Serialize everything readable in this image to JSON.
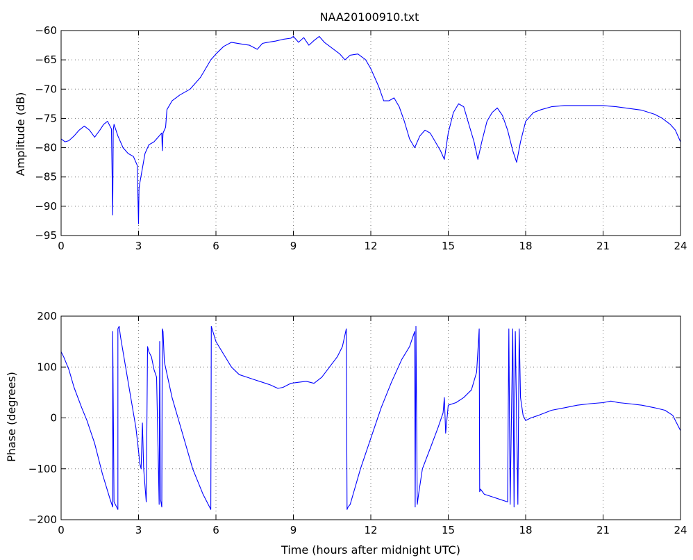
{
  "chart_data": [
    {
      "type": "line",
      "title": "NAA20100910.txt",
      "xlabel": "",
      "ylabel": "Amplitude (dB)",
      "xlim": [
        0,
        24
      ],
      "ylim": [
        -95,
        -60
      ],
      "xticks": [
        0,
        3,
        6,
        9,
        12,
        15,
        18,
        21,
        24
      ],
      "yticks": [
        -95,
        -90,
        -85,
        -80,
        -75,
        -70,
        -65,
        -60
      ],
      "grid": true,
      "series": [
        {
          "color": "#0000ff",
          "x": [
            0,
            0.15,
            0.3,
            0.5,
            0.7,
            0.9,
            1.1,
            1.3,
            1.5,
            1.65,
            1.8,
            1.95,
            2.0,
            2.02,
            2.05,
            2.2,
            2.4,
            2.6,
            2.8,
            2.95,
            3.0,
            3.02,
            3.05,
            3.15,
            3.25,
            3.4,
            3.6,
            3.8,
            3.9,
            3.92,
            3.95,
            4.05,
            4.1,
            4.3,
            4.6,
            5.0,
            5.4,
            5.8,
            6.0,
            6.3,
            6.6,
            7.0,
            7.3,
            7.6,
            7.8,
            8.0,
            8.3,
            8.6,
            8.9,
            9.0,
            9.2,
            9.4,
            9.6,
            9.8,
            10.0,
            10.2,
            10.5,
            10.8,
            11.0,
            11.2,
            11.5,
            11.8,
            12.0,
            12.3,
            12.5,
            12.7,
            12.9,
            13.1,
            13.3,
            13.5,
            13.7,
            13.9,
            14.1,
            14.3,
            14.5,
            14.7,
            14.85,
            15.0,
            15.2,
            15.4,
            15.6,
            15.8,
            16.0,
            16.15,
            16.3,
            16.5,
            16.7,
            16.9,
            17.1,
            17.3,
            17.5,
            17.65,
            17.8,
            18.0,
            18.3,
            18.6,
            19.0,
            19.5,
            20.0,
            20.5,
            21.0,
            21.5,
            22.0,
            22.5,
            23.0,
            23.3,
            23.6,
            23.8,
            24.0
          ],
          "y": [
            -78.5,
            -79.0,
            -78.8,
            -78.0,
            -77.0,
            -76.3,
            -77.0,
            -78.2,
            -77.0,
            -76.0,
            -75.5,
            -76.8,
            -91.5,
            -77.0,
            -76.0,
            -78.0,
            -80.0,
            -81.0,
            -81.5,
            -83.0,
            -93.0,
            -87.0,
            -86.0,
            -83.5,
            -81.0,
            -79.5,
            -79.0,
            -78.0,
            -77.5,
            -80.5,
            -77.5,
            -76.5,
            -73.5,
            -72.0,
            -71.0,
            -70.0,
            -68.0,
            -65.0,
            -64.0,
            -62.7,
            -62.0,
            -62.3,
            -62.5,
            -63.2,
            -62.2,
            -62.0,
            -61.8,
            -61.5,
            -61.3,
            -61.0,
            -62.0,
            -61.2,
            -62.5,
            -61.7,
            -61.0,
            -62.0,
            -63.0,
            -64.0,
            -65.0,
            -64.2,
            -64.0,
            -65.0,
            -66.5,
            -69.5,
            -72.0,
            -72.0,
            -71.5,
            -73.0,
            -75.5,
            -78.5,
            -80.0,
            -78.0,
            -77.0,
            -77.5,
            -79.0,
            -80.5,
            -82.0,
            -77.5,
            -74.0,
            -72.5,
            -73.0,
            -76.0,
            -79.0,
            -82.0,
            -79.0,
            -75.5,
            -74.0,
            -73.2,
            -74.5,
            -77.0,
            -80.5,
            -82.5,
            -79.0,
            -75.5,
            -74.0,
            -73.5,
            -73.0,
            -72.8,
            -72.8,
            -72.8,
            -72.8,
            -73.0,
            -73.3,
            -73.6,
            -74.3,
            -75.0,
            -76.0,
            -77.0,
            -79.0
          ]
        }
      ]
    },
    {
      "type": "line",
      "title": "",
      "xlabel": "Time (hours after midnight UTC)",
      "ylabel": "Phase (degrees)",
      "xlim": [
        0,
        24
      ],
      "ylim": [
        -200,
        200
      ],
      "xticks": [
        0,
        3,
        6,
        9,
        12,
        15,
        18,
        21,
        24
      ],
      "yticks": [
        -200,
        -100,
        0,
        100,
        200
      ],
      "grid": true,
      "series": [
        {
          "color": "#0000ff",
          "x": [
            0,
            0.1,
            0.3,
            0.5,
            0.8,
            1.0,
            1.3,
            1.6,
            1.9,
            2.0,
            2.0,
            2.05,
            2.2,
            2.2,
            2.25,
            2.3,
            2.6,
            2.9,
            3.0,
            3.05,
            3.1,
            3.15,
            3.2,
            3.3,
            3.35,
            3.4,
            3.5,
            3.6,
            3.7,
            3.8,
            3.82,
            3.85,
            3.9,
            3.92,
            3.95,
            4.0,
            4.3,
            4.7,
            5.1,
            5.5,
            5.8,
            5.82,
            5.85,
            6.0,
            6.3,
            6.6,
            6.9,
            7.2,
            7.5,
            7.8,
            8.1,
            8.4,
            8.6,
            8.9,
            9.2,
            9.5,
            9.8,
            10.1,
            10.4,
            10.7,
            10.9,
            11.05,
            11.08,
            11.12,
            11.2,
            11.6,
            12.0,
            12.4,
            12.8,
            13.2,
            13.5,
            13.7,
            13.72,
            13.75,
            13.8,
            13.85,
            14.0,
            14.3,
            14.6,
            14.8,
            14.85,
            14.9,
            15.0,
            15.3,
            15.6,
            15.9,
            16.1,
            16.2,
            16.22,
            16.25,
            16.4,
            16.7,
            17.0,
            17.3,
            17.35,
            17.4,
            17.5,
            17.55,
            17.6,
            17.7,
            17.75,
            17.8,
            17.9,
            18.0,
            18.2,
            18.5,
            19.0,
            19.5,
            20.0,
            20.5,
            21.0,
            21.3,
            21.6,
            22.0,
            22.5,
            23.0,
            23.4,
            23.7,
            23.85,
            24.0
          ],
          "y": [
            130,
            120,
            95,
            60,
            20,
            -5,
            -50,
            -110,
            -160,
            -175,
            170,
            -165,
            -180,
            175,
            180,
            160,
            70,
            -20,
            -65,
            -90,
            -100,
            -10,
            -100,
            -165,
            140,
            130,
            120,
            95,
            80,
            -170,
            150,
            -160,
            -175,
            175,
            170,
            110,
            40,
            -30,
            -100,
            -150,
            -180,
            180,
            175,
            150,
            125,
            100,
            85,
            80,
            75,
            70,
            65,
            58,
            60,
            68,
            70,
            72,
            68,
            80,
            100,
            120,
            140,
            175,
            -180,
            -175,
            -170,
            -100,
            -40,
            20,
            70,
            115,
            140,
            170,
            -175,
            180,
            -170,
            -150,
            -100,
            -60,
            -20,
            10,
            40,
            -30,
            25,
            30,
            40,
            55,
            90,
            175,
            -145,
            -140,
            -150,
            -155,
            -160,
            -165,
            175,
            -170,
            175,
            -175,
            170,
            -170,
            175,
            40,
            5,
            -5,
            0,
            5,
            15,
            20,
            25,
            28,
            30,
            33,
            30,
            28,
            25,
            20,
            15,
            5,
            -10,
            -25
          ]
        }
      ]
    }
  ]
}
